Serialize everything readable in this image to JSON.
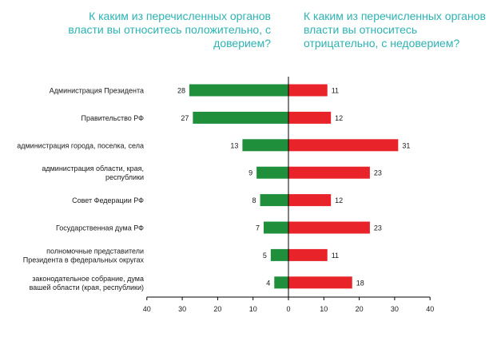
{
  "header": {
    "left_question": "К каким из перечисленных органов власти вы относитесь положительно, с доверием?",
    "right_question": "К каким из перечисленных органов власти вы относитесь отрицательно, с недоверием?"
  },
  "colors": {
    "positive": "#1f8f3c",
    "negative": "#e8232a",
    "title": "#2db3b3",
    "axis": "#000000"
  },
  "chart_data": {
    "type": "bar",
    "orientation": "horizontal-diverging",
    "title": "",
    "xlabel": "",
    "ylabel": "",
    "xlim": [
      -40,
      40
    ],
    "x_ticks": [
      "40",
      "30",
      "20",
      "10",
      "0",
      "10",
      "20",
      "30",
      "40"
    ],
    "legend": "none",
    "grid": false,
    "categories": [
      [
        "Администрация Президента"
      ],
      [
        "Правительство РФ"
      ],
      [
        "администрация города, поселка, села"
      ],
      [
        "администрация области, края,",
        "республики"
      ],
      [
        "Совет Федерации РФ"
      ],
      [
        "Государственная дума РФ"
      ],
      [
        "полномочные представители",
        "Президента в федеральных округах"
      ],
      [
        "законодательное собрание, дума",
        "вашей области (края, республики)"
      ]
    ],
    "series": [
      {
        "values": [
          28,
          27,
          13,
          9,
          8,
          7,
          5,
          4
        ]
      },
      {
        "values": [
          11,
          12,
          31,
          23,
          12,
          23,
          11,
          18
        ]
      }
    ]
  }
}
